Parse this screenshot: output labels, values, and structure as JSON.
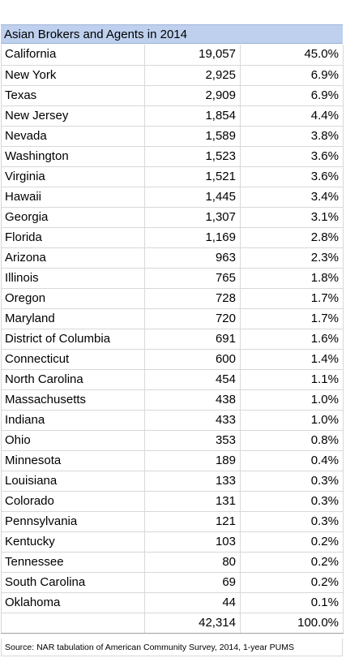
{
  "title": "Asian Brokers and Agents in 2014",
  "rows": [
    {
      "state": "California",
      "count": "19,057",
      "share": "45.0%"
    },
    {
      "state": "New York",
      "count": "2,925",
      "share": "6.9%"
    },
    {
      "state": "Texas",
      "count": "2,909",
      "share": "6.9%"
    },
    {
      "state": "New Jersey",
      "count": "1,854",
      "share": "4.4%"
    },
    {
      "state": "Nevada",
      "count": "1,589",
      "share": "3.8%"
    },
    {
      "state": "Washington",
      "count": "1,523",
      "share": "3.6%"
    },
    {
      "state": "Virginia",
      "count": "1,521",
      "share": "3.6%"
    },
    {
      "state": "Hawaii",
      "count": "1,445",
      "share": "3.4%"
    },
    {
      "state": "Georgia",
      "count": "1,307",
      "share": "3.1%"
    },
    {
      "state": "Florida",
      "count": "1,169",
      "share": "2.8%"
    },
    {
      "state": "Arizona",
      "count": "963",
      "share": "2.3%"
    },
    {
      "state": "Illinois",
      "count": "765",
      "share": "1.8%"
    },
    {
      "state": "Oregon",
      "count": "728",
      "share": "1.7%"
    },
    {
      "state": "Maryland",
      "count": "720",
      "share": "1.7%"
    },
    {
      "state": "District of Columbia",
      "count": "691",
      "share": "1.6%"
    },
    {
      "state": "Connecticut",
      "count": "600",
      "share": "1.4%"
    },
    {
      "state": "North Carolina",
      "count": "454",
      "share": "1.1%"
    },
    {
      "state": "Massachusetts",
      "count": "438",
      "share": "1.0%"
    },
    {
      "state": "Indiana",
      "count": "433",
      "share": "1.0%"
    },
    {
      "state": "Ohio",
      "count": "353",
      "share": "0.8%"
    },
    {
      "state": "Minnesota",
      "count": "189",
      "share": "0.4%"
    },
    {
      "state": "Louisiana",
      "count": "133",
      "share": "0.3%"
    },
    {
      "state": "Colorado",
      "count": "131",
      "share": "0.3%"
    },
    {
      "state": "Pennsylvania",
      "count": "121",
      "share": "0.3%"
    },
    {
      "state": "Kentucky",
      "count": "103",
      "share": "0.2%"
    },
    {
      "state": "Tennessee",
      "count": "80",
      "share": "0.2%"
    },
    {
      "state": "South Carolina",
      "count": "69",
      "share": "0.2%"
    },
    {
      "state": "Oklahoma",
      "count": "44",
      "share": "0.1%"
    }
  ],
  "total": {
    "state": "",
    "count": "42,314",
    "share": "100.0%"
  },
  "source": "Source: NAR tabulation of American Community Survey, 2014, 1-year PUMS"
}
